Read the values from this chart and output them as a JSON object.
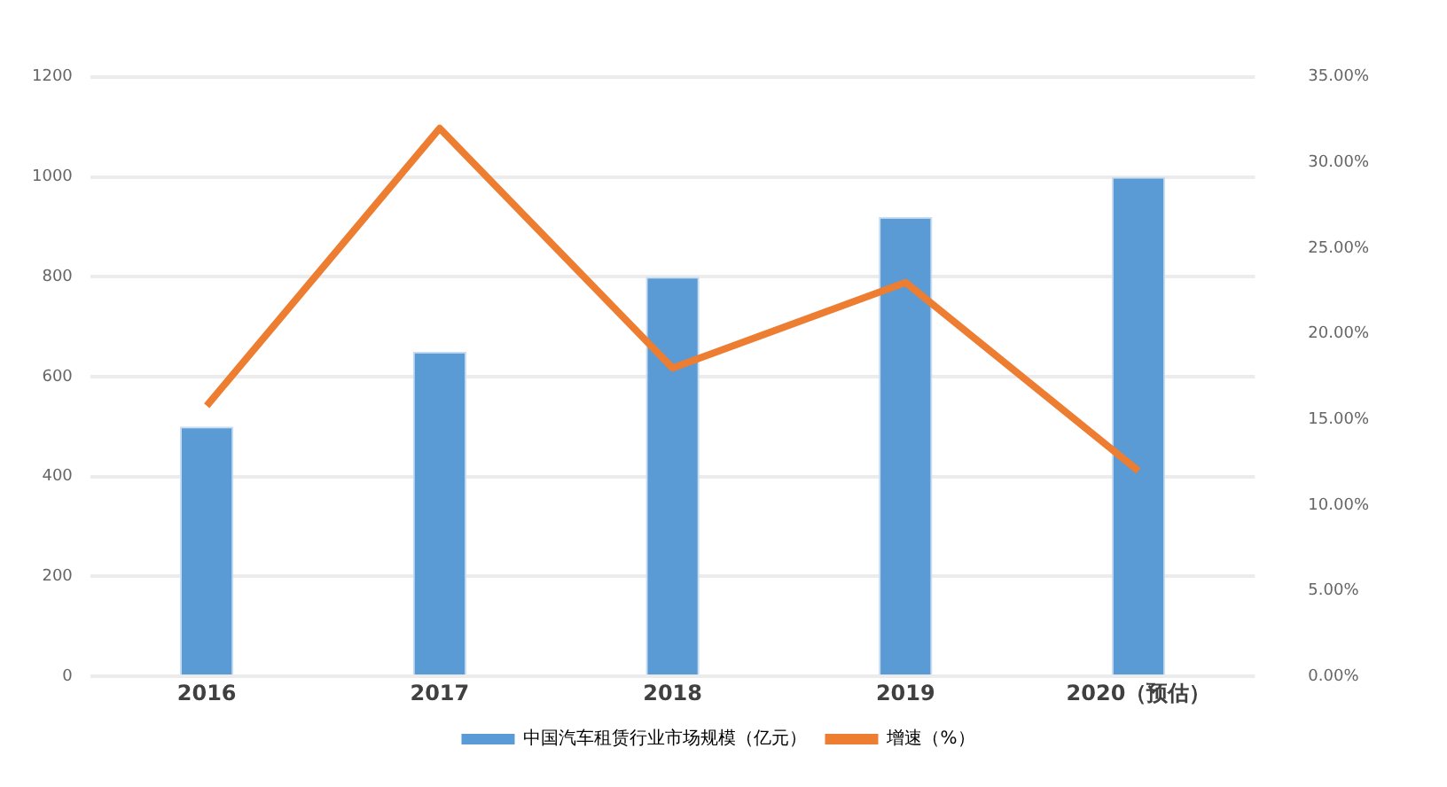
{
  "chart_data": {
    "type": "bar",
    "categories": [
      "2016",
      "2017",
      "2018",
      "2019",
      "2020（预估）"
    ],
    "series": [
      {
        "name": "中国汽车租赁行业市场规模（亿元）",
        "color": "#5b9bd5",
        "values": [
          500,
          650,
          800,
          920,
          1000
        ]
      },
      {
        "name": "增速（%）",
        "type": "line",
        "axis": "y2",
        "color": "#ed7d31",
        "values": [
          15.8,
          32.0,
          18.0,
          23.0,
          12.0
        ]
      }
    ],
    "ylim": [
      0,
      1200
    ],
    "yticks": [
      0,
      200,
      400,
      600,
      800,
      1000,
      1200
    ],
    "y2lim": [
      0,
      35
    ],
    "y2ticks": [
      {
        "value": 0,
        "label": "0.00%"
      },
      {
        "value": 5,
        "label": "5.00%"
      },
      {
        "value": 10,
        "label": "10.00%"
      },
      {
        "value": 15,
        "label": "15.00%"
      },
      {
        "value": 20,
        "label": "20.00%"
      },
      {
        "value": 25,
        "label": "25.00%"
      },
      {
        "value": 30,
        "label": "30.00%"
      },
      {
        "value": 35,
        "label": "35.00%"
      }
    ],
    "grid": "y",
    "legend": "bottom",
    "marker": "none"
  }
}
